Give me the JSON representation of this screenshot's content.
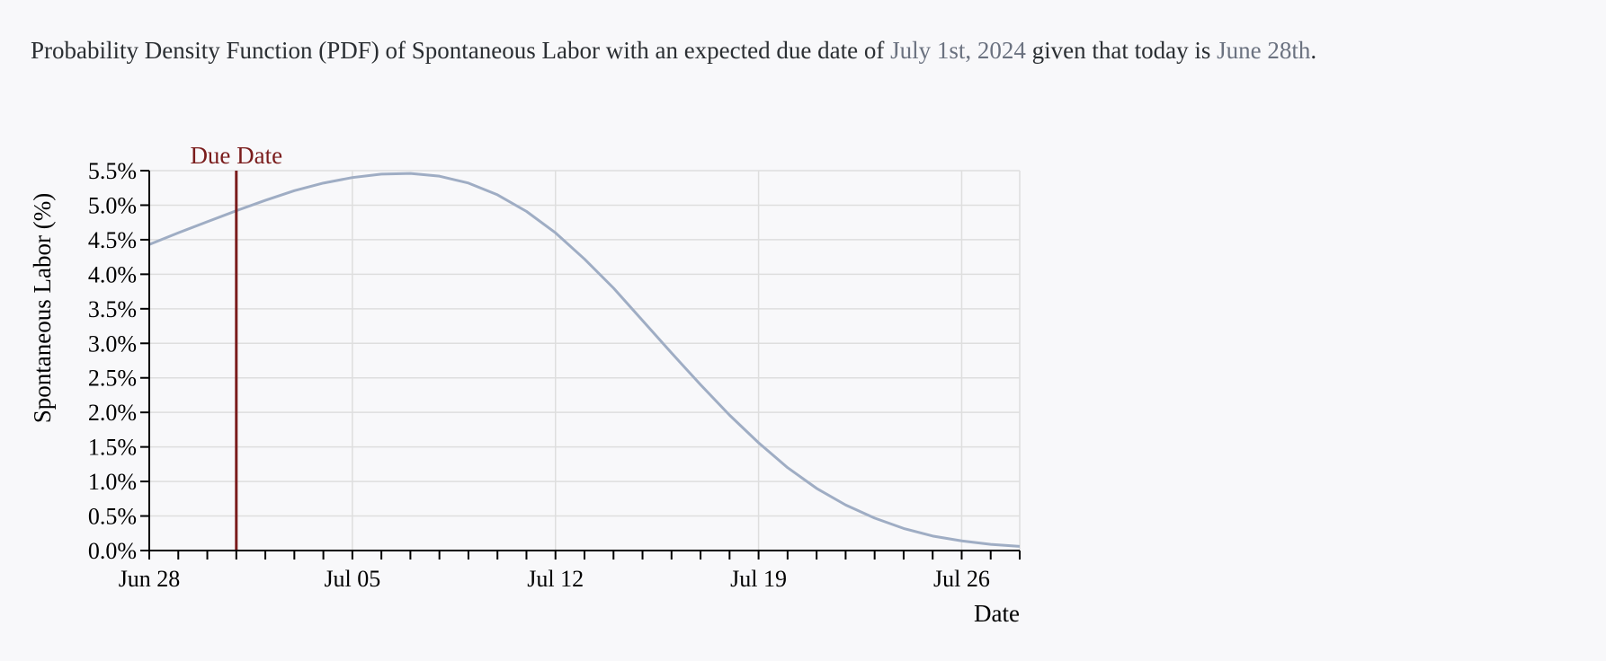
{
  "caption": {
    "before": "Probability Density Function (PDF) of Spontaneous Labor with an expected due date of ",
    "due_date_text": "July 1st, 2024",
    "middle": " given that today is ",
    "today_text": "June 28th",
    "after": "."
  },
  "colors": {
    "line": "#9fadc4",
    "due_line": "#7a1c1c",
    "grid": "#dedede",
    "axis": "#000000"
  },
  "chart_data": {
    "type": "line",
    "xlabel": "Date",
    "ylabel": "Spontaneous Labor (%)",
    "x_ticks": [
      {
        "date": "2024-06-28",
        "label": "Jun 28"
      },
      {
        "date": "2024-07-05",
        "label": "Jul 05"
      },
      {
        "date": "2024-07-12",
        "label": "Jul 12"
      },
      {
        "date": "2024-07-19",
        "label": "Jul 19"
      },
      {
        "date": "2024-07-26",
        "label": "Jul 26"
      }
    ],
    "xlim": [
      "2024-06-28",
      "2024-07-28"
    ],
    "ylim": [
      0,
      5.5
    ],
    "y_ticks": [
      {
        "value": 0.0,
        "label": "0.0%"
      },
      {
        "value": 0.5,
        "label": "0.5%"
      },
      {
        "value": 1.0,
        "label": "1.0%"
      },
      {
        "value": 1.5,
        "label": "1.5%"
      },
      {
        "value": 2.0,
        "label": "2.0%"
      },
      {
        "value": 2.5,
        "label": "2.5%"
      },
      {
        "value": 3.0,
        "label": "3.0%"
      },
      {
        "value": 3.5,
        "label": "3.5%"
      },
      {
        "value": 4.0,
        "label": "4.0%"
      },
      {
        "value": 4.5,
        "label": "4.5%"
      },
      {
        "value": 5.0,
        "label": "5.0%"
      },
      {
        "value": 5.5,
        "label": "5.5%"
      }
    ],
    "grid": true,
    "annotation": {
      "date": "2024-07-01",
      "label": "Due Date"
    },
    "series": [
      {
        "points": [
          {
            "x": "2024-06-28",
            "y": 4.43
          },
          {
            "x": "2024-06-29",
            "y": 4.6
          },
          {
            "x": "2024-06-30",
            "y": 4.76
          },
          {
            "x": "2024-07-01",
            "y": 4.92
          },
          {
            "x": "2024-07-02",
            "y": 5.07
          },
          {
            "x": "2024-07-03",
            "y": 5.21
          },
          {
            "x": "2024-07-04",
            "y": 5.32
          },
          {
            "x": "2024-07-05",
            "y": 5.4
          },
          {
            "x": "2024-07-06",
            "y": 5.45
          },
          {
            "x": "2024-07-07",
            "y": 5.46
          },
          {
            "x": "2024-07-08",
            "y": 5.42
          },
          {
            "x": "2024-07-09",
            "y": 5.32
          },
          {
            "x": "2024-07-10",
            "y": 5.15
          },
          {
            "x": "2024-07-11",
            "y": 4.91
          },
          {
            "x": "2024-07-12",
            "y": 4.6
          },
          {
            "x": "2024-07-13",
            "y": 4.22
          },
          {
            "x": "2024-07-14",
            "y": 3.8
          },
          {
            "x": "2024-07-15",
            "y": 3.33
          },
          {
            "x": "2024-07-16",
            "y": 2.86
          },
          {
            "x": "2024-07-17",
            "y": 2.4
          },
          {
            "x": "2024-07-18",
            "y": 1.96
          },
          {
            "x": "2024-07-19",
            "y": 1.56
          },
          {
            "x": "2024-07-20",
            "y": 1.2
          },
          {
            "x": "2024-07-21",
            "y": 0.9
          },
          {
            "x": "2024-07-22",
            "y": 0.66
          },
          {
            "x": "2024-07-23",
            "y": 0.47
          },
          {
            "x": "2024-07-24",
            "y": 0.32
          },
          {
            "x": "2024-07-25",
            "y": 0.21
          },
          {
            "x": "2024-07-26",
            "y": 0.14
          },
          {
            "x": "2024-07-27",
            "y": 0.09
          },
          {
            "x": "2024-07-28",
            "y": 0.06
          }
        ]
      }
    ]
  }
}
